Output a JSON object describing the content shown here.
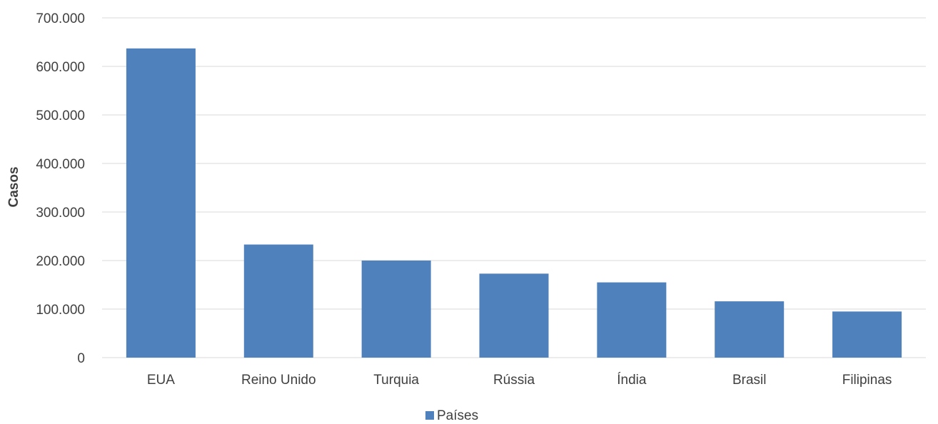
{
  "chart_data": {
    "type": "bar",
    "categories": [
      "EUA",
      "Reino Unido",
      "Turquia",
      "Rússia",
      "Índia",
      "Brasil",
      "Filipinas"
    ],
    "series": [
      {
        "name": "Países",
        "values": [
          637000,
          233000,
          200000,
          173000,
          155000,
          116000,
          95000
        ]
      }
    ],
    "xlabel": "",
    "ylabel": "Casos",
    "ylim": [
      0,
      700000
    ],
    "yticks": [
      0,
      100000,
      200000,
      300000,
      400000,
      500000,
      600000,
      700000
    ],
    "ytick_labels": [
      "0",
      "100.000",
      "200.000",
      "300.000",
      "400.000",
      "500.000",
      "600.000",
      "700.000"
    ],
    "grid": true,
    "legend_position": "bottom",
    "colors": {
      "bar": "#4f81bd"
    }
  }
}
